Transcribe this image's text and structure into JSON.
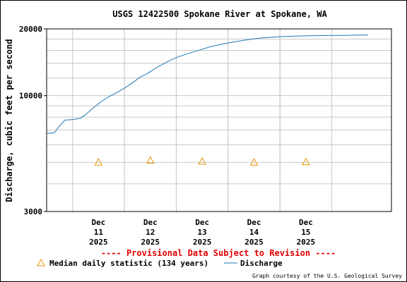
{
  "chart_data": {
    "type": "line",
    "title": "USGS 12422500 Spokane River at Spokane, WA",
    "ylabel": "Discharge, cubic feet per second",
    "xlabel": "",
    "y_scale": "log",
    "ylim": [
      3000,
      20000
    ],
    "y_ticks": [
      {
        "value": 3000,
        "label": "3000"
      },
      {
        "value": 10000,
        "label": "10000"
      },
      {
        "value": 20000,
        "label": "20000"
      }
    ],
    "xlim": [
      0,
      1.33
    ],
    "x_ticks": [
      {
        "x": 0.2,
        "lines": [
          "Dec",
          "11",
          "2025"
        ]
      },
      {
        "x": 0.4,
        "lines": [
          "Dec",
          "12",
          "2025"
        ]
      },
      {
        "x": 0.6,
        "lines": [
          "Dec",
          "13",
          "2025"
        ]
      },
      {
        "x": 0.8,
        "lines": [
          "Dec",
          "14",
          "2025"
        ]
      },
      {
        "x": 1.0,
        "lines": [
          "Dec",
          "15",
          "2025"
        ]
      }
    ],
    "series": [
      {
        "name": "Discharge",
        "color": "#1f77b4",
        "points": [
          [
            0.0,
            6750
          ],
          [
            0.03,
            6800
          ],
          [
            0.05,
            7300
          ],
          [
            0.07,
            7750
          ],
          [
            0.1,
            7800
          ],
          [
            0.13,
            7900
          ],
          [
            0.15,
            8200
          ],
          [
            0.18,
            8800
          ],
          [
            0.21,
            9400
          ],
          [
            0.24,
            9900
          ],
          [
            0.27,
            10300
          ],
          [
            0.3,
            10800
          ],
          [
            0.33,
            11400
          ],
          [
            0.36,
            12100
          ],
          [
            0.39,
            12600
          ],
          [
            0.42,
            13300
          ],
          [
            0.45,
            13900
          ],
          [
            0.48,
            14500
          ],
          [
            0.51,
            15000
          ],
          [
            0.54,
            15400
          ],
          [
            0.57,
            15800
          ],
          [
            0.6,
            16200
          ],
          [
            0.63,
            16600
          ],
          [
            0.66,
            16900
          ],
          [
            0.69,
            17200
          ],
          [
            0.72,
            17450
          ],
          [
            0.75,
            17700
          ],
          [
            0.78,
            17900
          ],
          [
            0.81,
            18100
          ],
          [
            0.84,
            18250
          ],
          [
            0.87,
            18350
          ],
          [
            0.9,
            18450
          ],
          [
            0.93,
            18500
          ],
          [
            0.96,
            18550
          ],
          [
            1.0,
            18600
          ],
          [
            1.05,
            18650
          ],
          [
            1.1,
            18700
          ],
          [
            1.15,
            18700
          ],
          [
            1.2,
            18750
          ],
          [
            1.24,
            18750
          ]
        ]
      }
    ],
    "median_daily": {
      "name": "Median daily statistic (134 years)",
      "color": "#e69500",
      "points": [
        [
          0.2,
          5000
        ],
        [
          0.4,
          5100
        ],
        [
          0.6,
          5050
        ],
        [
          0.8,
          5000
        ],
        [
          1.0,
          5020
        ]
      ]
    },
    "notice": "---- Provisional Data Subject to Revision ----",
    "credit": "Graph courtesy of the U.S. Geological Survey",
    "grid": true,
    "legend_position": "bottom-left",
    "colors": {
      "notice": "#e00000",
      "grid": "#c8c8c8",
      "axis": "#000000"
    }
  }
}
